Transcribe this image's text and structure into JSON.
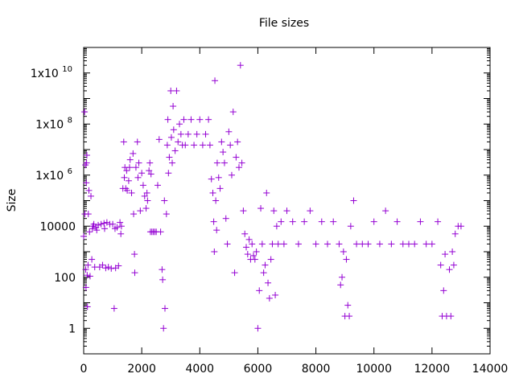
{
  "chart_data": {
    "type": "scatter",
    "title": "File sizes",
    "xlabel": "",
    "ylabel": "Size",
    "xlim": [
      0,
      14000
    ],
    "ylim": [
      0.1,
      100000000000
    ],
    "y_scale": "log",
    "grid": false,
    "legend": "none",
    "marker": "plus",
    "color": "#9400d3",
    "x_ticks": [
      {
        "value": 0,
        "label": "0"
      },
      {
        "value": 2000,
        "label": "2000"
      },
      {
        "value": 4000,
        "label": "4000"
      },
      {
        "value": 6000,
        "label": "6000"
      },
      {
        "value": 8000,
        "label": "8000"
      },
      {
        "value": 10000,
        "label": "10000"
      },
      {
        "value": 12000,
        "label": "12000"
      },
      {
        "value": 14000,
        "label": "14000"
      }
    ],
    "y_ticks": [
      {
        "value": 1,
        "label": "1"
      },
      {
        "value": 100,
        "label": "100"
      },
      {
        "value": 10000,
        "label": "10000"
      },
      {
        "value": 1000000,
        "label": "1x10",
        "exp": "6"
      },
      {
        "value": 100000000,
        "label": "1x10",
        "exp": "8"
      },
      {
        "value": 10000000000,
        "label": "1x10",
        "exp": "10"
      }
    ],
    "series": [
      {
        "points": [
          [
            0,
            4000
          ],
          [
            30,
            300000000
          ],
          [
            40,
            30000
          ],
          [
            60,
            2500000
          ],
          [
            70,
            200
          ],
          [
            80,
            40
          ],
          [
            90,
            500000
          ],
          [
            100,
            3000000
          ],
          [
            110,
            6000000
          ],
          [
            120,
            120
          ],
          [
            130,
            7
          ],
          [
            150,
            300
          ],
          [
            160,
            30000
          ],
          [
            180,
            250000
          ],
          [
            200,
            6000
          ],
          [
            220,
            110
          ],
          [
            250,
            150000
          ],
          [
            280,
            500
          ],
          [
            300,
            8000
          ],
          [
            320,
            10000
          ],
          [
            350,
            12000
          ],
          [
            380,
            250
          ],
          [
            420,
            9000
          ],
          [
            450,
            7000
          ],
          [
            500,
            11000
          ],
          [
            550,
            250
          ],
          [
            600,
            12000
          ],
          [
            650,
            300
          ],
          [
            700,
            13000
          ],
          [
            720,
            8000
          ],
          [
            760,
            230
          ],
          [
            800,
            14000
          ],
          [
            850,
            250
          ],
          [
            900,
            12000
          ],
          [
            950,
            220
          ],
          [
            1000,
            12000
          ],
          [
            1050,
            6
          ],
          [
            1080,
            8000
          ],
          [
            1100,
            230
          ],
          [
            1150,
            9000
          ],
          [
            1200,
            280
          ],
          [
            1250,
            14000
          ],
          [
            1280,
            5000
          ],
          [
            1300,
            10000
          ],
          [
            1350,
            300000
          ],
          [
            1380,
            20000000
          ],
          [
            1400,
            800000
          ],
          [
            1420,
            2000000
          ],
          [
            1450,
            300000
          ],
          [
            1480,
            1500000
          ],
          [
            1500,
            250000
          ],
          [
            1550,
            600000
          ],
          [
            1580,
            2000000
          ],
          [
            1600,
            4000000
          ],
          [
            1650,
            200000
          ],
          [
            1700,
            7000000
          ],
          [
            1720,
            30000
          ],
          [
            1750,
            800
          ],
          [
            1760,
            150
          ],
          [
            1800,
            2000000
          ],
          [
            1850,
            20000000
          ],
          [
            1870,
            800000
          ],
          [
            1900,
            3000000
          ],
          [
            1950,
            40000
          ],
          [
            2000,
            1200000
          ],
          [
            2050,
            400000
          ],
          [
            2100,
            150000
          ],
          [
            2150,
            50000
          ],
          [
            2180,
            200000
          ],
          [
            2200,
            100000
          ],
          [
            2250,
            1500000
          ],
          [
            2280,
            3000000
          ],
          [
            2300,
            6000
          ],
          [
            2320,
            1100000
          ],
          [
            2350,
            6000
          ],
          [
            2400,
            6000
          ],
          [
            2450,
            6000
          ],
          [
            2500,
            6000
          ],
          [
            2550,
            400000
          ],
          [
            2600,
            25000000
          ],
          [
            2650,
            6000
          ],
          [
            2700,
            200
          ],
          [
            2720,
            80
          ],
          [
            2750,
            1
          ],
          [
            2780,
            100000
          ],
          [
            2800,
            6
          ],
          [
            2850,
            30000
          ],
          [
            2880,
            15000000
          ],
          [
            2900,
            150000000
          ],
          [
            2920,
            1200000
          ],
          [
            2950,
            5000000
          ],
          [
            3000,
            2000000000
          ],
          [
            3020,
            30000000
          ],
          [
            3050,
            3000000
          ],
          [
            3080,
            500000000
          ],
          [
            3100,
            60000000
          ],
          [
            3150,
            9000000
          ],
          [
            3200,
            2000000000
          ],
          [
            3250,
            20000000
          ],
          [
            3300,
            100000000
          ],
          [
            3350,
            40000000
          ],
          [
            3400,
            15000000
          ],
          [
            3450,
            150000000
          ],
          [
            3500,
            15000000
          ],
          [
            3600,
            40000000
          ],
          [
            3700,
            150000000
          ],
          [
            3800,
            15000000
          ],
          [
            3900,
            40000000
          ],
          [
            4000,
            150000000
          ],
          [
            4100,
            15000000
          ],
          [
            4200,
            40000000
          ],
          [
            4300,
            150000000
          ],
          [
            4350,
            15000000
          ],
          [
            4400,
            700000
          ],
          [
            4450,
            200000
          ],
          [
            4480,
            15000
          ],
          [
            4500,
            1000
          ],
          [
            4520,
            5000000000
          ],
          [
            4550,
            100000
          ],
          [
            4580,
            7000
          ],
          [
            4600,
            3000000
          ],
          [
            4650,
            800000
          ],
          [
            4700,
            300000
          ],
          [
            4750,
            20000000
          ],
          [
            4800,
            8000000
          ],
          [
            4850,
            3000000
          ],
          [
            4900,
            20000
          ],
          [
            4950,
            2000
          ],
          [
            5000,
            50000000
          ],
          [
            5050,
            15000000
          ],
          [
            5100,
            1000000
          ],
          [
            5150,
            300000000
          ],
          [
            5200,
            150
          ],
          [
            5250,
            5000000
          ],
          [
            5300,
            20000000
          ],
          [
            5350,
            2000000
          ],
          [
            5400,
            20000000000
          ],
          [
            5450,
            3000000
          ],
          [
            5500,
            40000
          ],
          [
            5550,
            5000
          ],
          [
            5600,
            1500
          ],
          [
            5650,
            800
          ],
          [
            5700,
            3000
          ],
          [
            5750,
            500
          ],
          [
            5800,
            2000
          ],
          [
            5850,
            700
          ],
          [
            5900,
            500
          ],
          [
            5950,
            1000
          ],
          [
            6000,
            1
          ],
          [
            6050,
            30
          ],
          [
            6100,
            50000
          ],
          [
            6150,
            2000
          ],
          [
            6200,
            150
          ],
          [
            6250,
            300
          ],
          [
            6300,
            200000
          ],
          [
            6350,
            60
          ],
          [
            6400,
            15
          ],
          [
            6450,
            500
          ],
          [
            6500,
            2000
          ],
          [
            6550,
            40000
          ],
          [
            6600,
            20
          ],
          [
            6650,
            10000
          ],
          [
            6700,
            2000
          ],
          [
            6800,
            15000
          ],
          [
            6900,
            2000
          ],
          [
            7000,
            40000
          ],
          [
            7200,
            15000
          ],
          [
            7400,
            2000
          ],
          [
            7600,
            15000
          ],
          [
            7800,
            40000
          ],
          [
            8000,
            2000
          ],
          [
            8200,
            15000
          ],
          [
            8400,
            2000
          ],
          [
            8600,
            15000
          ],
          [
            8800,
            2000
          ],
          [
            8850,
            50
          ],
          [
            8900,
            100
          ],
          [
            8950,
            1000
          ],
          [
            9000,
            3
          ],
          [
            9050,
            500
          ],
          [
            9100,
            8
          ],
          [
            9150,
            3
          ],
          [
            9200,
            10000
          ],
          [
            9300,
            100000
          ],
          [
            9400,
            2000
          ],
          [
            9600,
            2000
          ],
          [
            9800,
            2000
          ],
          [
            10000,
            15000
          ],
          [
            10200,
            2000
          ],
          [
            10400,
            40000
          ],
          [
            10600,
            2000
          ],
          [
            10800,
            15000
          ],
          [
            11000,
            2000
          ],
          [
            11200,
            2000
          ],
          [
            11400,
            2000
          ],
          [
            11600,
            15000
          ],
          [
            11800,
            2000
          ],
          [
            12000,
            2000
          ],
          [
            12200,
            15000
          ],
          [
            12300,
            300
          ],
          [
            12350,
            3
          ],
          [
            12400,
            30
          ],
          [
            12450,
            800
          ],
          [
            12500,
            3
          ],
          [
            12600,
            200
          ],
          [
            12650,
            3
          ],
          [
            12700,
            1000
          ],
          [
            12750,
            300
          ],
          [
            12800,
            5000
          ],
          [
            12900,
            10000
          ],
          [
            13000,
            10000
          ]
        ]
      }
    ]
  }
}
